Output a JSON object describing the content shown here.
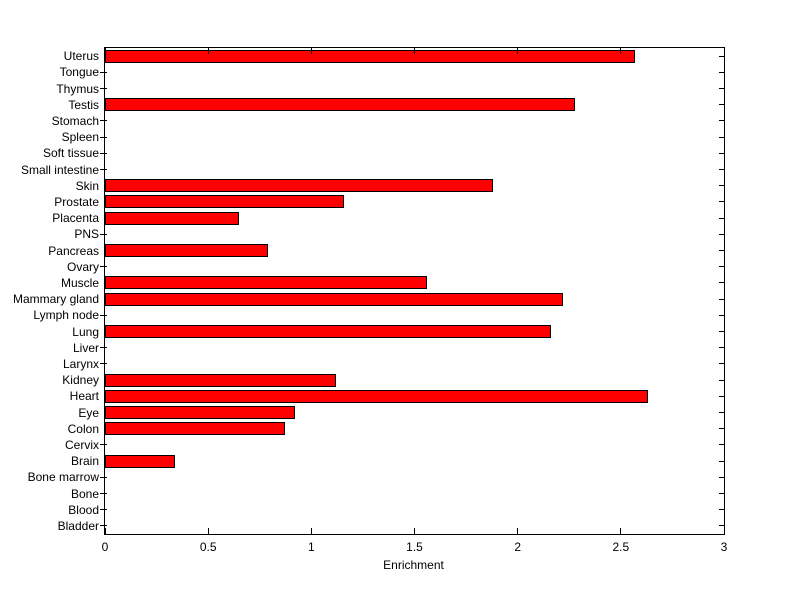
{
  "chart_data": {
    "type": "bar",
    "orientation": "horizontal",
    "title": "",
    "xlabel": "Enrichment",
    "ylabel": "",
    "xlim": [
      0,
      3
    ],
    "xticks": [
      0,
      0.5,
      1,
      1.5,
      2,
      2.5,
      3
    ],
    "xtick_labels": [
      "0",
      "0.5",
      "1",
      "1.5",
      "2",
      "2.5",
      "3"
    ],
    "grid": false,
    "legend": null,
    "bar_color": "#ff0000",
    "bar_edge_color": "#000000",
    "axis_color": "#000000",
    "background_color": "#ffffff",
    "categories": [
      "Uterus",
      "Tongue",
      "Thymus",
      "Testis",
      "Stomach",
      "Spleen",
      "Soft tissue",
      "Small intestine",
      "Skin",
      "Prostate",
      "Placenta",
      "PNS",
      "Pancreas",
      "Ovary",
      "Muscle",
      "Mammary gland",
      "Lymph node",
      "Lung",
      "Liver",
      "Larynx",
      "Kidney",
      "Heart",
      "Eye",
      "Colon",
      "Cervix",
      "Brain",
      "Bone marrow",
      "Bone",
      "Blood",
      "Bladder"
    ],
    "values": [
      2.57,
      0,
      0,
      2.28,
      0,
      0,
      0,
      0,
      1.88,
      1.16,
      0.65,
      0,
      0.79,
      0,
      1.56,
      2.22,
      0,
      2.16,
      0,
      0,
      1.12,
      2.63,
      0.92,
      0.87,
      0,
      0.34,
      0,
      0,
      0,
      0
    ]
  }
}
